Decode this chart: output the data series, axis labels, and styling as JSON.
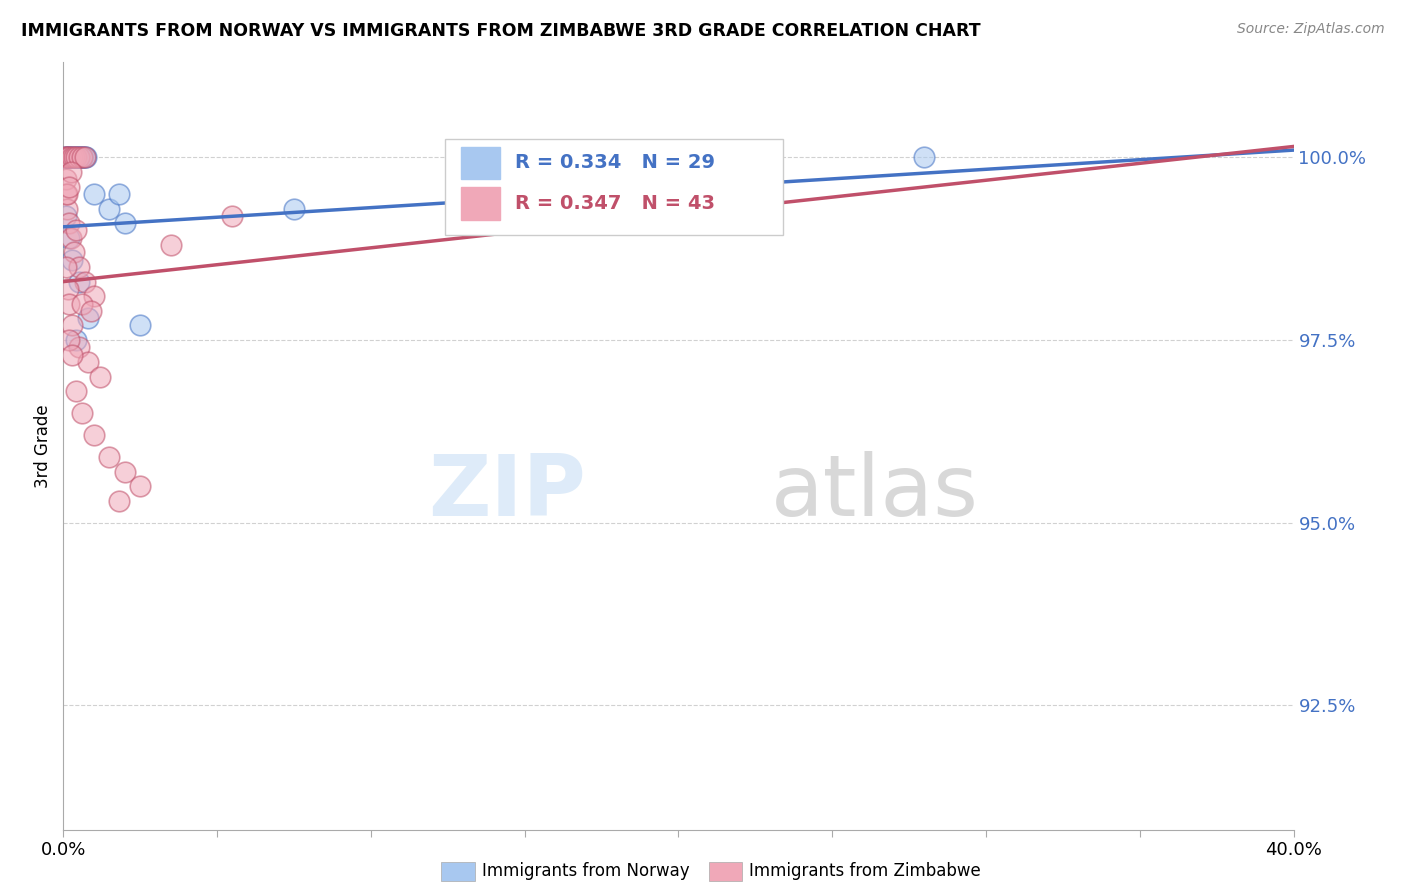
{
  "title": "IMMIGRANTS FROM NORWAY VS IMMIGRANTS FROM ZIMBABWE 3RD GRADE CORRELATION CHART",
  "source": "Source: ZipAtlas.com",
  "ylabel": "3rd Grade",
  "y_ticks": [
    92.5,
    95.0,
    97.5,
    100.0
  ],
  "y_tick_labels": [
    "92.5%",
    "95.0%",
    "97.5%",
    "100.0%"
  ],
  "xlim": [
    0.0,
    40.0
  ],
  "ylim": [
    90.8,
    101.3
  ],
  "norway_R": "0.334",
  "norway_N": "29",
  "zimbabwe_R": "0.347",
  "zimbabwe_N": "43",
  "norway_color": "#a8c8f0",
  "zimbabwe_color": "#f0a8b8",
  "norway_line_color": "#4472C4",
  "zimbabwe_line_color": "#C0506A",
  "legend_norway": "Immigrants from Norway",
  "legend_zimbabwe": "Immigrants from Zimbabwe",
  "watermark_zip": "ZIP",
  "watermark_atlas": "atlas",
  "norway_line": [
    [
      0.0,
      99.05
    ],
    [
      40.0,
      100.1
    ]
  ],
  "zimbabwe_line": [
    [
      0.0,
      98.3
    ],
    [
      40.0,
      100.15
    ]
  ],
  "norway_points": [
    [
      0.05,
      100.0
    ],
    [
      0.1,
      100.0
    ],
    [
      0.15,
      100.0
    ],
    [
      0.2,
      100.0
    ],
    [
      0.25,
      100.0
    ],
    [
      0.3,
      100.0
    ],
    [
      0.35,
      100.0
    ],
    [
      0.4,
      100.0
    ],
    [
      0.45,
      100.0
    ],
    [
      0.5,
      100.0
    ],
    [
      0.55,
      100.0
    ],
    [
      0.6,
      100.0
    ],
    [
      0.65,
      100.0
    ],
    [
      0.7,
      100.0
    ],
    [
      0.75,
      100.0
    ],
    [
      1.0,
      99.5
    ],
    [
      1.5,
      99.3
    ],
    [
      2.0,
      99.1
    ],
    [
      0.1,
      99.2
    ],
    [
      0.2,
      98.9
    ],
    [
      0.3,
      98.6
    ],
    [
      0.5,
      98.3
    ],
    [
      0.8,
      97.8
    ],
    [
      2.5,
      97.7
    ],
    [
      1.8,
      99.5
    ],
    [
      13.5,
      100.0
    ],
    [
      28.0,
      100.0
    ],
    [
      7.5,
      99.3
    ],
    [
      0.4,
      97.5
    ]
  ],
  "zimbabwe_points": [
    [
      0.05,
      100.0
    ],
    [
      0.1,
      100.0
    ],
    [
      0.15,
      100.0
    ],
    [
      0.2,
      100.0
    ],
    [
      0.3,
      100.0
    ],
    [
      0.35,
      100.0
    ],
    [
      0.4,
      100.0
    ],
    [
      0.5,
      100.0
    ],
    [
      0.6,
      100.0
    ],
    [
      0.7,
      100.0
    ],
    [
      0.08,
      99.5
    ],
    [
      0.12,
      99.3
    ],
    [
      0.18,
      99.1
    ],
    [
      0.25,
      98.9
    ],
    [
      0.35,
      98.7
    ],
    [
      0.5,
      98.5
    ],
    [
      0.7,
      98.3
    ],
    [
      1.0,
      98.1
    ],
    [
      0.1,
      98.5
    ],
    [
      0.15,
      98.2
    ],
    [
      0.2,
      98.0
    ],
    [
      0.3,
      97.7
    ],
    [
      0.5,
      97.4
    ],
    [
      0.8,
      97.2
    ],
    [
      1.2,
      97.0
    ],
    [
      0.08,
      99.7
    ],
    [
      0.12,
      99.5
    ],
    [
      3.5,
      98.8
    ],
    [
      5.5,
      99.2
    ],
    [
      0.4,
      96.8
    ],
    [
      0.6,
      96.5
    ],
    [
      1.0,
      96.2
    ],
    [
      1.5,
      95.9
    ],
    [
      0.2,
      97.5
    ],
    [
      0.3,
      97.3
    ],
    [
      2.0,
      95.7
    ],
    [
      2.5,
      95.5
    ],
    [
      0.25,
      99.8
    ],
    [
      0.18,
      99.6
    ],
    [
      1.8,
      95.3
    ],
    [
      0.6,
      98.0
    ],
    [
      0.9,
      97.9
    ],
    [
      0.4,
      99.0
    ]
  ]
}
